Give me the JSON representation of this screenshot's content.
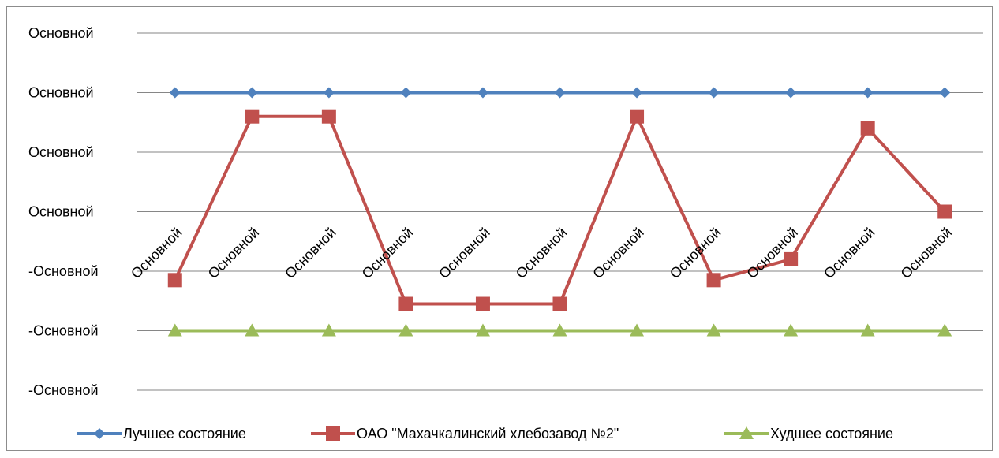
{
  "chart_data": {
    "type": "line",
    "categories": [
      "Основной",
      "Основной",
      "Основной",
      "Основной",
      "Основной",
      "Основной",
      "Основной",
      "Основной",
      "Основной",
      "Основной",
      "Основной"
    ],
    "y_tick_labels": [
      "Основной",
      "Основной",
      "Основной",
      "Основной",
      "-Основной",
      "-Основной",
      "-Основной"
    ],
    "ylim": [
      -3,
      3
    ],
    "y_ticks": [
      3,
      2,
      1,
      0,
      -1,
      -2,
      -3
    ],
    "grid": true,
    "legend_position": "bottom",
    "series": [
      {
        "name": "Лучшее состояние",
        "color": "#4f81bd",
        "marker": "diamond",
        "values": [
          2,
          2,
          2,
          2,
          2,
          2,
          2,
          2,
          2,
          2,
          2
        ]
      },
      {
        "name": "ОАО \"Махачкалинский хлебозавод №2\"",
        "color": "#c0504d",
        "marker": "square",
        "values": [
          -1.15,
          1.6,
          1.6,
          -1.55,
          -1.55,
          -1.55,
          1.6,
          -1.15,
          -0.8,
          1.4,
          0
        ]
      },
      {
        "name": "Худшее состояние",
        "color": "#9bbb59",
        "marker": "triangle",
        "values": [
          -2,
          -2,
          -2,
          -2,
          -2,
          -2,
          -2,
          -2,
          -2,
          -2,
          -2
        ]
      }
    ]
  }
}
